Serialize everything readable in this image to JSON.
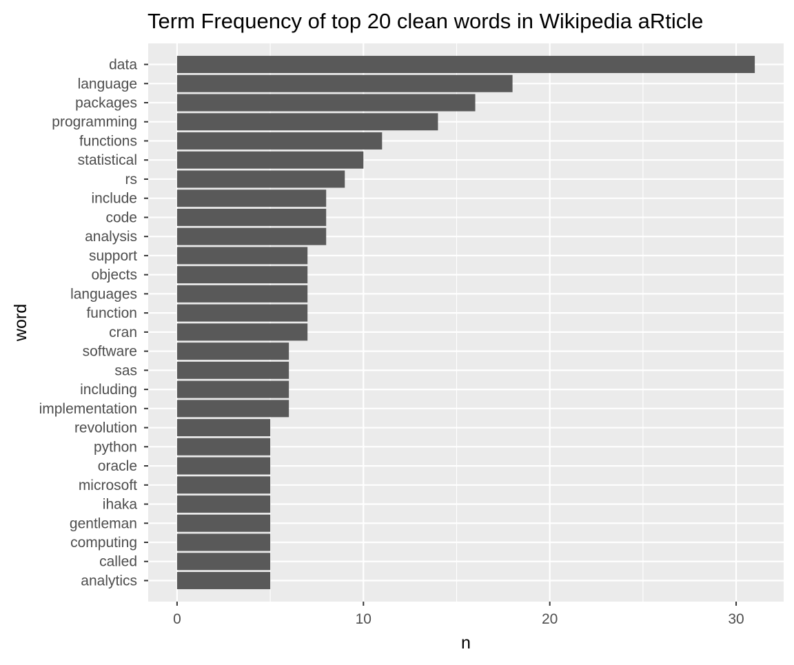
{
  "chart_data": {
    "type": "bar",
    "orientation": "horizontal",
    "title": "Term Frequency of top 20 clean words in Wikipedia aRticle",
    "xlabel": "n",
    "ylabel": "word",
    "categories": [
      "data",
      "language",
      "packages",
      "programming",
      "functions",
      "statistical",
      "rs",
      "include",
      "code",
      "analysis",
      "support",
      "objects",
      "languages",
      "function",
      "cran",
      "software",
      "sas",
      "including",
      "implementation",
      "revolution",
      "python",
      "oracle",
      "microsoft",
      "ihaka",
      "gentleman",
      "computing",
      "called",
      "analytics"
    ],
    "values": [
      31,
      18,
      16,
      14,
      11,
      10,
      9,
      8,
      8,
      8,
      7,
      7,
      7,
      7,
      7,
      6,
      6,
      6,
      6,
      5,
      5,
      5,
      5,
      5,
      5,
      5,
      5,
      5
    ],
    "xlim": [
      -1.55,
      32.55
    ],
    "xticks": [
      "0",
      "10",
      "20",
      "30"
    ],
    "grid": true,
    "colors": {
      "panel_background": "#ebebeb",
      "grid_line": "#ffffff",
      "bar_fill": "#595959",
      "tick_label": "#4d4d4d",
      "text": "#000000"
    }
  }
}
